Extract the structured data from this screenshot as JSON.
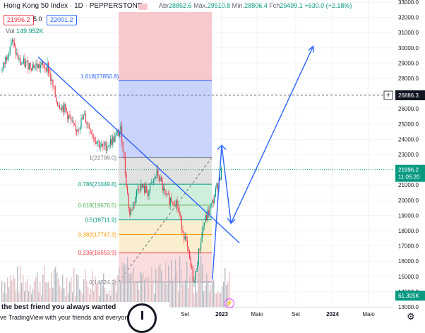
{
  "header": {
    "title": "Hong Kong 50 Index · 1D · PEPPERSTONE",
    "open_label": "Abr",
    "open": "28852.6",
    "high_label": "Máx.",
    "high": "29510.8",
    "low_label": "Mín.",
    "low": "28806.4",
    "close_label": "Fch",
    "close": "29499.1",
    "change": "+630.0 (+2.18%)",
    "sell_price": "21996.2",
    "quantity": "5.0",
    "buy_price": "22001.2",
    "volume_label": "Vol",
    "volume_value": "149.952K"
  },
  "promo": {
    "line1": "the best friend you always wanted",
    "line2": "ve TradingView with your friends and everyone"
  },
  "colors": {
    "up": "#089981",
    "down": "#f23645",
    "trend": "#2962ff",
    "fib_red": "#f7c9cc",
    "fib_blue": "#c9d3fb",
    "fib_grey": "#dedede",
    "fib_green": "#cbecd8",
    "fib_yellow": "#f8edc9",
    "fib_pink": "#fbd9dc",
    "vol_bar": "#c4c7ce"
  },
  "chart_data": {
    "type": "candlestick",
    "yaxis": {
      "min": 13000,
      "max": 33000,
      "step": 1000,
      "labels": [
        "13000.0",
        "14000.0",
        "15000.0",
        "16000.0",
        "17000.0",
        "18000.0",
        "19000.0",
        "20000.0",
        "21000.0",
        "22000.0",
        "23000.0",
        "24000.0",
        "25000.0",
        "26000.0",
        "27000.0",
        "28000.0",
        "29000.0",
        "30000.0",
        "31000.0",
        "32000.0",
        "33000.0"
      ]
    },
    "xaxis": {
      "labels": [
        "Set",
        "2023",
        "Maio",
        "Set",
        "2024",
        "Maio"
      ],
      "bold": [
        "2023",
        "2024"
      ]
    },
    "price_path": [
      {
        "date": "2021-01",
        "price": 28500
      },
      {
        "date": "2021-02",
        "price": 30500
      },
      {
        "date": "2021-03",
        "price": 29000
      },
      {
        "date": "2021-04",
        "price": 28900
      },
      {
        "date": "2021-05",
        "price": 28800
      },
      {
        "date": "2021-06",
        "price": 28800
      },
      {
        "date": "2021-07",
        "price": 26500
      },
      {
        "date": "2021-08",
        "price": 25900
      },
      {
        "date": "2021-09",
        "price": 24500
      },
      {
        "date": "2021-10",
        "price": 25500
      },
      {
        "date": "2021-11",
        "price": 24200
      },
      {
        "date": "2021-12",
        "price": 23400
      },
      {
        "date": "2022-01",
        "price": 23900
      },
      {
        "date": "2022-02",
        "price": 24600
      },
      {
        "date": "2022-03",
        "price": 19000
      },
      {
        "date": "2022-04",
        "price": 21000
      },
      {
        "date": "2022-05",
        "price": 20500
      },
      {
        "date": "2022-06",
        "price": 21800
      },
      {
        "date": "2022-07",
        "price": 20100
      },
      {
        "date": "2022-08",
        "price": 20000
      },
      {
        "date": "2022-09",
        "price": 17500
      },
      {
        "date": "2022-10",
        "price": 14600
      },
      {
        "date": "2022-11",
        "price": 18400
      },
      {
        "date": "2022-12",
        "price": 19800
      },
      {
        "date": "2023-01",
        "price": 21996
      }
    ],
    "last_price": {
      "value": 21996.2,
      "label": "21996.2",
      "countdown": "11:05:20"
    },
    "crosshair_price": {
      "value": 26886.3,
      "label": "26886.3"
    },
    "volume_axis_label": "61.305K",
    "fibonacci": [
      {
        "ratio": "1",
        "price": 22799,
        "label": "1(22799.0)",
        "fill": "fib_grey"
      },
      {
        "ratio": "0.786",
        "price": 21049.8,
        "label": "0.786(21049.8)",
        "fill": "fib_green"
      },
      {
        "ratio": "0.618",
        "price": 19676.5,
        "label": "0.618(19676.5)",
        "fill": "fib_green"
      },
      {
        "ratio": "0.5",
        "price": 18711.9,
        "label": "0.5(18711.9)",
        "fill": "fib_yellow"
      },
      {
        "ratio": "0.382",
        "price": 17747.3,
        "label": "0.382(17747.3)",
        "fill": "fib_yellow"
      },
      {
        "ratio": "0.236",
        "price": 16553.9,
        "label": "0.236(16553.9)",
        "fill": "fib_pink"
      },
      {
        "ratio": "0",
        "price": 14624.7,
        "label": "0(14624.7)",
        "fill": "fib_pink"
      }
    ],
    "fib_extension": {
      "ratio": "1.618",
      "price": 27850.8,
      "label": "1.618(27850.8)"
    },
    "drawings": [
      {
        "name": "downtrend-line",
        "points": [
          {
            "date": "2021-05",
            "price": 29400
          },
          {
            "date": "2023-03",
            "price": 17200
          }
        ]
      },
      {
        "name": "projection-path",
        "points": [
          {
            "date": "2022-12",
            "price": 14800
          },
          {
            "date": "2023-01",
            "price": 23600
          },
          {
            "date": "2023-02",
            "price": 18500
          },
          {
            "date": "2023-11",
            "price": 30100
          }
        ]
      }
    ]
  }
}
